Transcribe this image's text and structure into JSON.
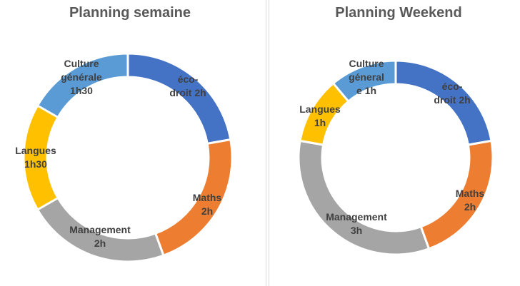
{
  "chart_data": [
    {
      "type": "pie",
      "donut": true,
      "title": "Planning semaine",
      "categories": [
        "éco-droit",
        "Maths",
        "Management",
        "Langues",
        "Culture générale"
      ],
      "values": [
        2,
        2,
        2,
        1.5,
        1.5
      ],
      "labels": [
        "éco-\ndroit 2h",
        "Maths\n2h",
        "Management\n2h",
        "Langues\n1h30",
        "Culture\ngénérale\n1h30"
      ],
      "colors": [
        "#4472C4",
        "#ED7D31",
        "#A5A5A5",
        "#FFC000",
        "#5B9BD5"
      ]
    },
    {
      "type": "pie",
      "donut": true,
      "title": "Planning Weekend",
      "categories": [
        "éco-droit",
        "Maths",
        "Management",
        "Langues",
        "Culture générale"
      ],
      "values": [
        2,
        2,
        3,
        1,
        1
      ],
      "labels": [
        "éco-\ndroit 2h",
        "Maths\n2h",
        "Management\n3h",
        "Langues\n1h",
        "Culture\ngéneral\ne 1h"
      ],
      "colors": [
        "#4472C4",
        "#ED7D31",
        "#A5A5A5",
        "#FFC000",
        "#5B9BD5"
      ]
    }
  ]
}
